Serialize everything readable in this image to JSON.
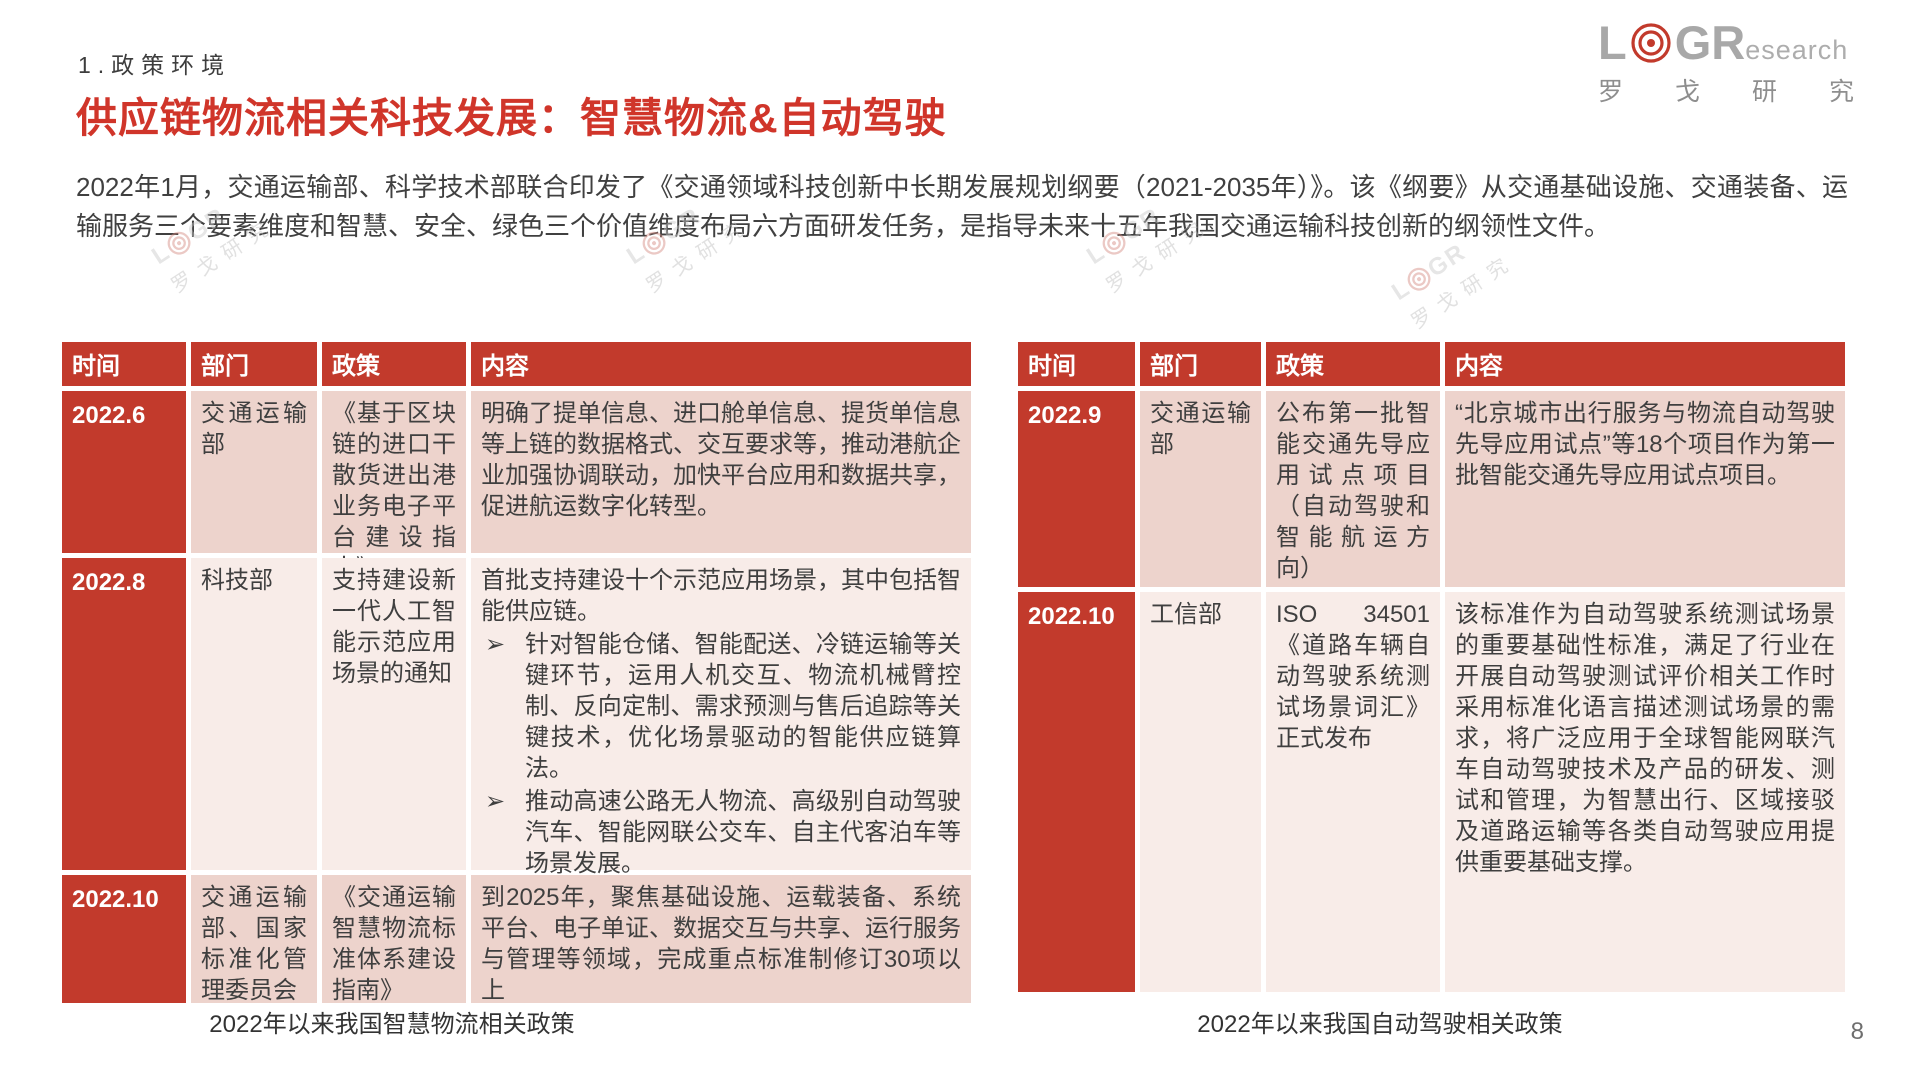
{
  "page": {
    "section_label": "1.政策环境",
    "title": "供应链物流相关科技发展：智慧物流&自动驾驶",
    "intro": "2022年1月，交通运输部、科学技术部联合印发了《交通领域科技创新中长期发展规划纲要（2021-2035年）》。该《纲要》从交通基础设施、交通装备、运输服务三个要素维度和智慧、安全、绿色三个价值维度布局六方面研发任务，是指导未来十五年我国交通运输科技创新的纲领性文件。",
    "page_number": "8"
  },
  "logo": {
    "letter_l": "L",
    "letter_g": "G",
    "letter_r": "R",
    "suffix": "esearch",
    "chinese_name": "罗戈研究"
  },
  "watermark": {
    "letter_l": "L",
    "letters_gr": "GR",
    "chinese": "罗戈研究"
  },
  "tables": {
    "bullet_marker": "➢",
    "left": {
      "caption": "2022年以来我国智慧物流相关政策",
      "headers": [
        "时间",
        "部门",
        "政策",
        "内容"
      ],
      "rows": [
        {
          "time": "2022.6",
          "department": "交通运输部",
          "policy": "《基于区块链的进口干散货进出港业务电子平台建设指南》",
          "content": [
            {
              "type": "text",
              "value": "明确了提单信息、进口舱单信息、提货单信息等上链的数据格式、交互要求等，推动港航企业加强协调联动，加快平台应用和数据共享，促进航运数字化转型。"
            }
          ]
        },
        {
          "time": "2022.8",
          "department": "科技部",
          "policy": "支持建设新一代人工智能示范应用场景的通知",
          "content": [
            {
              "type": "text",
              "value": "首批支持建设十个示范应用场景，其中包括智能供应链。"
            },
            {
              "type": "bullet",
              "value": "针对智能仓储、智能配送、冷链运输等关键环节，运用人机交互、物流机械臂控制、反向定制、需求预测与售后追踪等关键技术，优化场景驱动的智能供应链算法。"
            },
            {
              "type": "bullet",
              "value": "推动高速公路无人物流、高级别自动驾驶汽车、智能网联公交车、自主代客泊车等场景发展。"
            }
          ]
        },
        {
          "time": "2022.10",
          "department": "交通运输部、国家标准化管理委员会",
          "policy": "《交通运输智慧物流标准体系建设指南》",
          "content": [
            {
              "type": "text",
              "value": "到2025年，聚焦基础设施、运载装备、系统平台、电子单证、数据交互与共享、运行服务与管理等领域，完成重点标准制修订30项以上"
            }
          ]
        }
      ]
    },
    "right": {
      "caption": "2022年以来我国自动驾驶相关政策",
      "headers": [
        "时间",
        "部门",
        "政策",
        "内容"
      ],
      "rows": [
        {
          "time": "2022.9",
          "department": "交通运输部",
          "policy": "公布第一批智能交通先导应用试点项目（自动驾驶和智能航运方向）",
          "content": [
            {
              "type": "text",
              "value": "“北京城市出行服务与物流自动驾驶先导应用试点”等18个项目作为第一批智能交通先导应用试点项目。"
            }
          ]
        },
        {
          "time": "2022.10",
          "department": "工信部",
          "policy": "ISO 34501《道路车辆自动驾驶系统测试场景词汇》正式发布",
          "content": [
            {
              "type": "text",
              "value": "该标准作为自动驾驶系统测试场景的重要基础性标准，满足了行业在开展自动驾驶测试评价相关工作时采用标准化语言描述测试场景的需求，将广泛应用于全球智能网联汽车自动驾驶技术及产品的研发、测试和管理，为智慧出行、区域接驳及道路运输等各类自动驾驶应用提供重要基础支撑。"
            }
          ]
        }
      ]
    }
  },
  "colors": {
    "title_red": "#d0352a",
    "table_header_red": "#c23a2c",
    "row_pink_dark": "#edd3cc",
    "row_pink_light": "#f8ece8",
    "body_text": "#404040",
    "logo_gray": "#a8a8a8"
  }
}
